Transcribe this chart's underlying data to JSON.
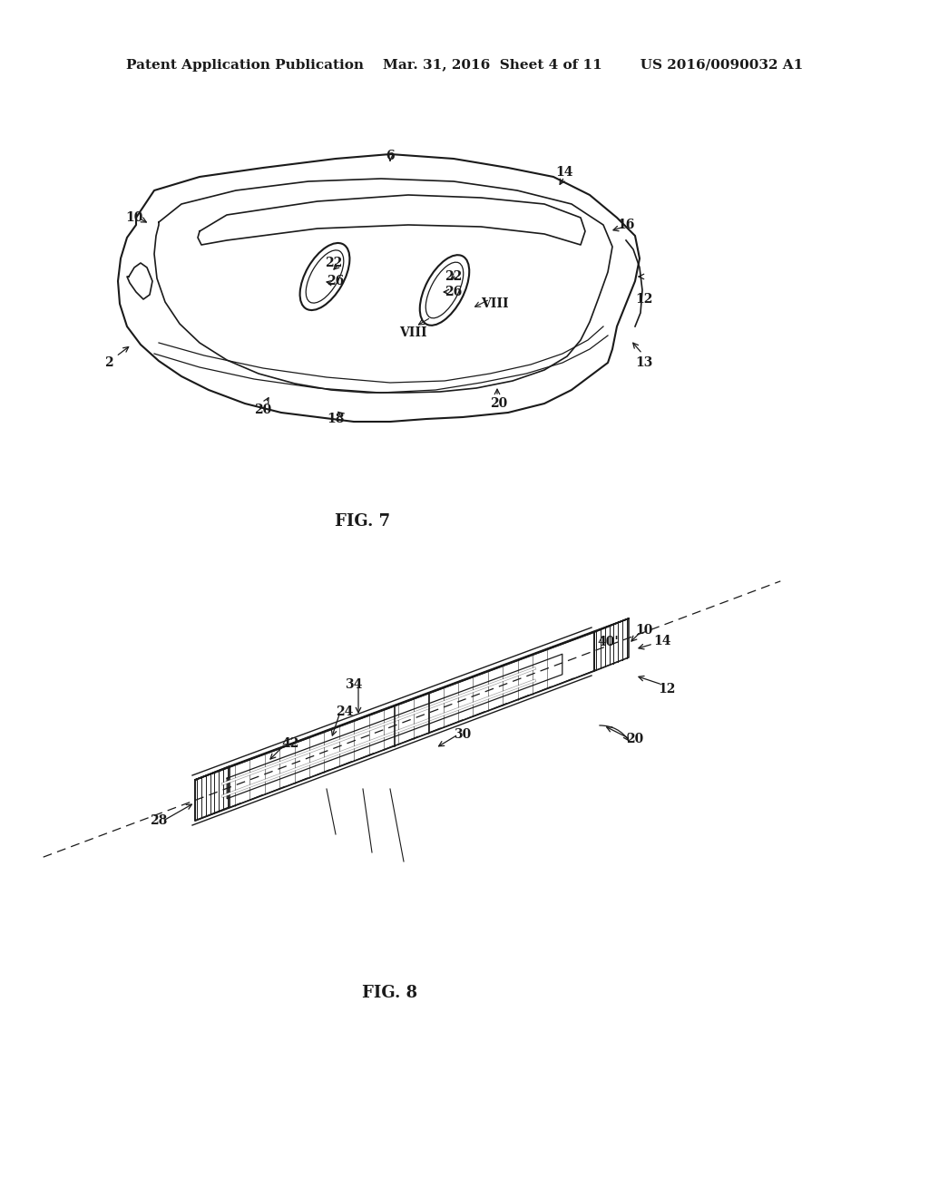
{
  "bg_color": "#ffffff",
  "header_text": "Patent Application Publication    Mar. 31, 2016  Sheet 4 of 11        US 2016/0090032 A1",
  "fig7_label": "FIG. 7",
  "fig8_label": "FIG. 8",
  "line_color": "#1a1a1a",
  "hatch_color": "#1a1a1a",
  "annotation_color": "#1a1a1a",
  "font_size_header": 11,
  "font_size_label": 13,
  "font_size_annot": 10
}
